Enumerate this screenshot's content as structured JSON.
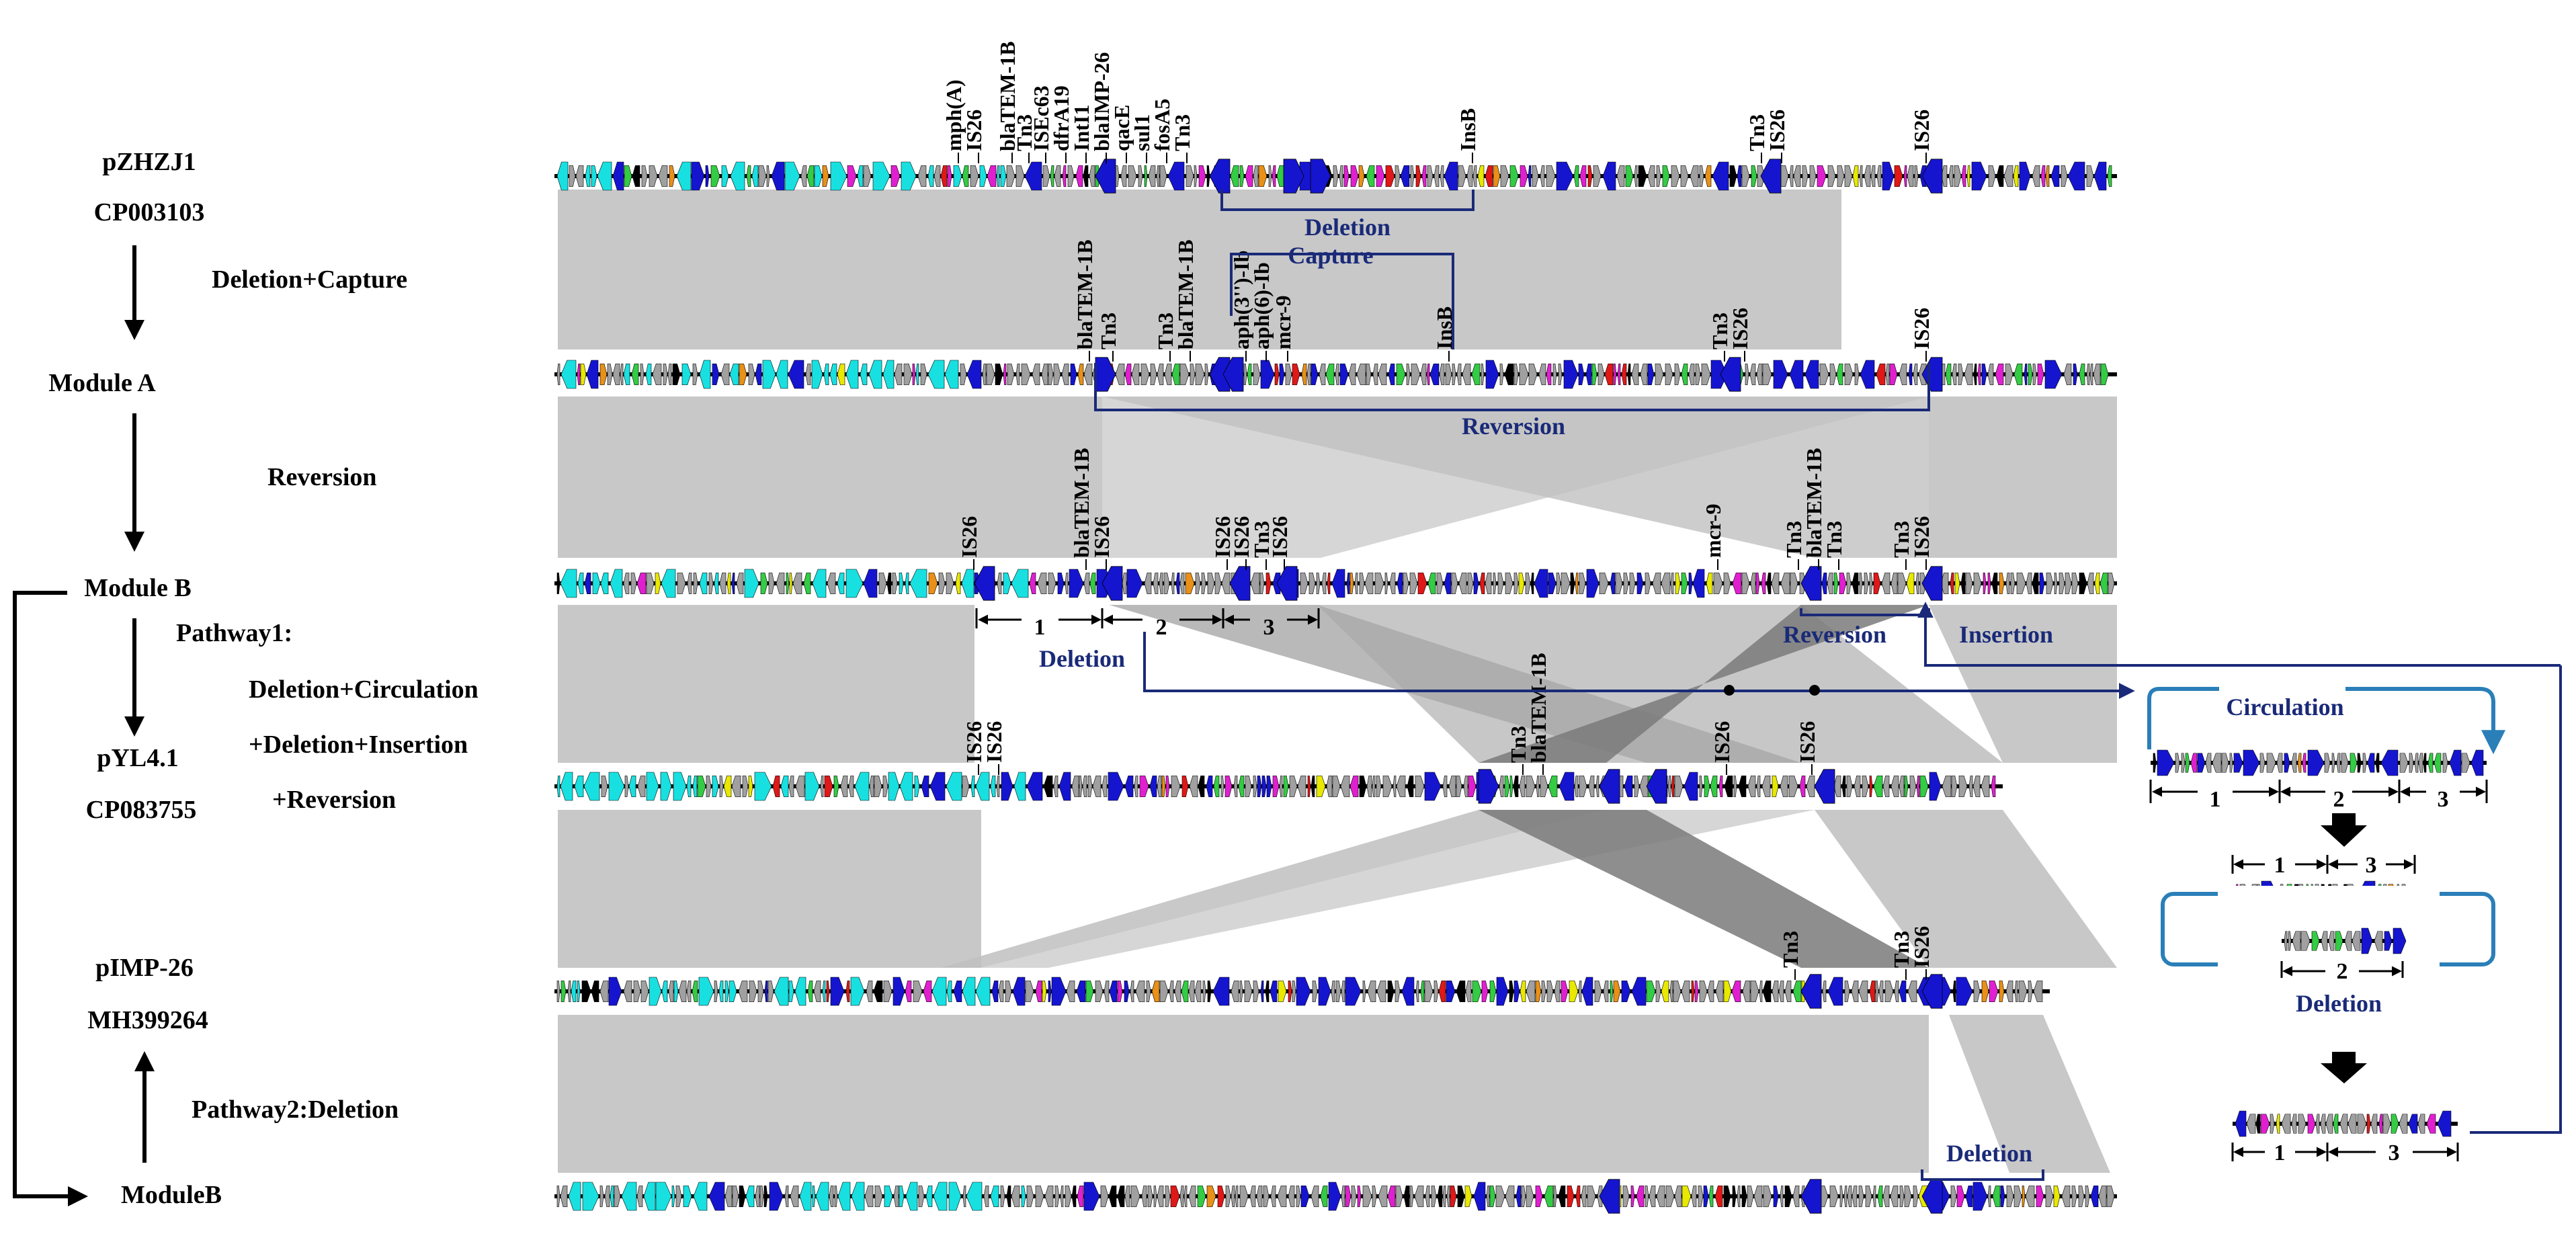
{
  "tracks": [
    {
      "id": "pZHZJ1",
      "name": "pZHZJ1",
      "accession": "CP003103"
    },
    {
      "id": "moduleA",
      "name": "Module A",
      "accession": ""
    },
    {
      "id": "moduleB",
      "name": "Module B",
      "accession": ""
    },
    {
      "id": "pYL4",
      "name": "pYL4.1",
      "accession": "CP083755"
    },
    {
      "id": "pIMP",
      "name": "pIMP-26",
      "accession": "MH399264"
    },
    {
      "id": "moduleB2",
      "name": "ModuleB",
      "accession": ""
    }
  ],
  "steps": {
    "s1": "Deletion+Capture",
    "s2": "Reversion",
    "s3a": "Pathway1:",
    "s3b": "Deletion+Circulation",
    "s3c": "+Deletion+Insertion",
    "s3d": "+Reversion",
    "s4": "Pathway2:Deletion"
  },
  "gene_labels": {
    "t1": [
      "mph(A)",
      "IS26",
      "blaTEM-1B",
      "Tn3",
      "ISEc63",
      "dfrA19",
      "IntI1",
      "blaIMP-26",
      "qacE",
      "sul1",
      "fosA5",
      "Tn3",
      "InsB",
      "Tn3",
      "IS26",
      "IS26"
    ],
    "t2": [
      "blaTEM-1B",
      "Tn3",
      "Tn3",
      "blaTEM-1B",
      "aph(3'')-Ib",
      "aph(6)-Ib",
      "mcr-9",
      "InsB",
      "Tn3",
      "IS26",
      "IS26"
    ],
    "t3": [
      "IS26",
      "blaTEM-1B",
      "IS26",
      "IS26",
      "IS26",
      "Tn3",
      "IS26",
      "mcr-9",
      "Tn3",
      "blaTEM-1B",
      "Tn3",
      "Tn3",
      "IS26"
    ],
    "t4": [
      "IS26",
      "IS26",
      "Tn3",
      "blaTEM-1B",
      "IS26",
      "IS26"
    ],
    "t5": [
      "Tn3",
      "Tn3",
      "IS26"
    ]
  },
  "events": {
    "deletion1": "Deletion",
    "capture": "Capture",
    "reversion1": "Reversion",
    "deletion2": "Deletion",
    "reversion2": "Reversion",
    "insertion": "Insertion",
    "circulation": "Circulation",
    "deletion3": "Deletion",
    "deletion4": "Deletion"
  },
  "segments": {
    "n1": "1",
    "n2": "2",
    "n3": "3"
  },
  "palette": {
    "navy": "#1a2a78",
    "cyan": "#2a7fb8",
    "ribbon": "#c8c8c8",
    "ribbon_dark": "#7a7a7a",
    "gene_blue": "#1515d0",
    "gene_cyan": "#19e0e0",
    "gene_gray": "#a0a0a0",
    "gene_magenta": "#e020d0",
    "gene_green": "#33cc44",
    "gene_yellow": "#e8e800",
    "gene_red": "#e01818",
    "gene_orange": "#e89018"
  }
}
